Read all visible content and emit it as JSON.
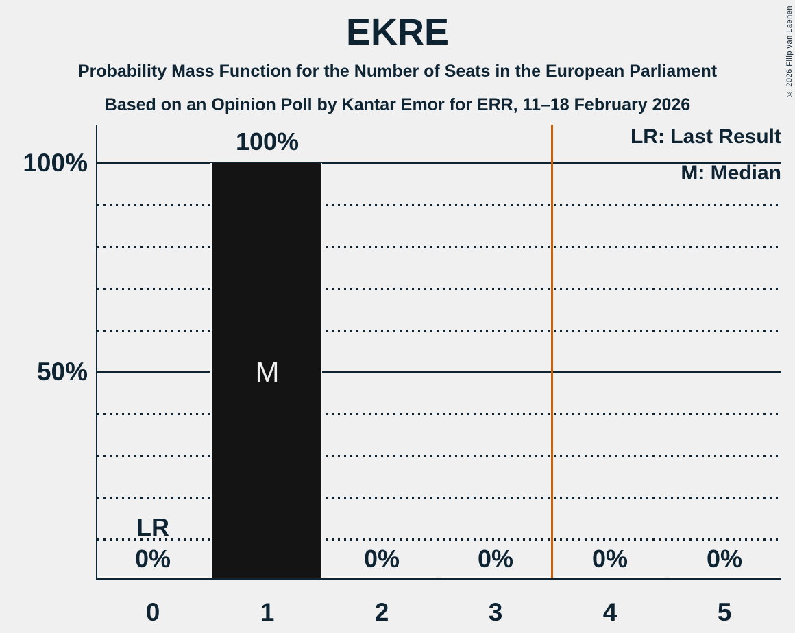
{
  "copyright": "© 2026 Filip van Laenen",
  "chart_data": {
    "type": "bar",
    "title": "EKRE",
    "subtitle": "Probability Mass Function for the Number of Seats in the European Parliament",
    "source_line": "Based on an Opinion Poll by Kantar Emor for ERR, 11–18 February 2026",
    "categories": [
      "0",
      "1",
      "2",
      "3",
      "4",
      "5"
    ],
    "values": [
      0,
      100,
      0,
      0,
      0,
      0
    ],
    "value_labels": [
      "0%",
      "100%",
      "0%",
      "0%",
      "0%",
      "0%"
    ],
    "ylim": [
      0,
      100
    ],
    "y_ticks": [
      {
        "value": 100,
        "label": "100%"
      },
      {
        "value": 50,
        "label": "50%"
      }
    ],
    "dotted_gridlines_percent": [
      10,
      20,
      30,
      40,
      60,
      70,
      80,
      90
    ],
    "solid_gridlines_percent": [
      50,
      100
    ],
    "median": {
      "seat": 1,
      "label": "M"
    },
    "last_result": {
      "seat": 0,
      "label": "LR"
    },
    "last_result_line_x": 3.5,
    "legend": [
      {
        "label": "LR: Last Result"
      },
      {
        "label": "M: Median"
      }
    ],
    "colors": {
      "background": "#f0f0f0",
      "text": "#0e2433",
      "bar": "#141414",
      "bar_inner_label": "#f0f0f0",
      "last_result_line": "#d25e00"
    }
  }
}
